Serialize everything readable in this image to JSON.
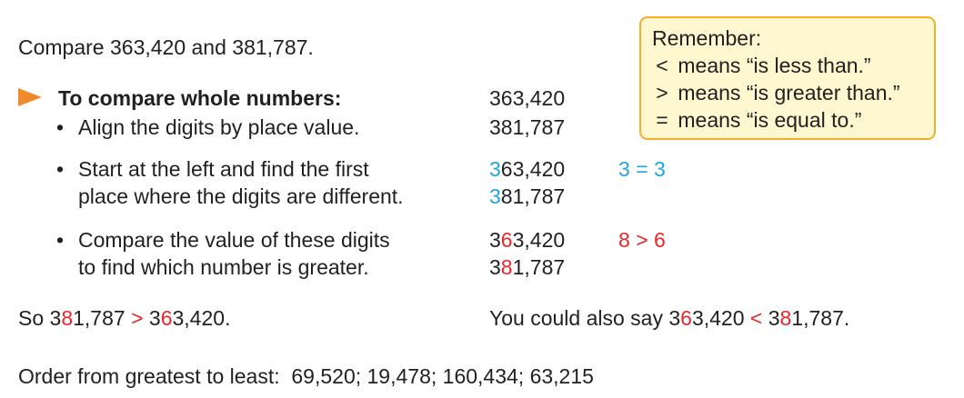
{
  "intro": "Compare 363,420 and 381,787.",
  "remember": {
    "title": "Remember:",
    "lines": [
      {
        "symbol": "<",
        "text": " means “is less than.”"
      },
      {
        "symbol": ">",
        "text": " means “is greater than.”"
      },
      {
        "symbol": "=",
        "text": " means “is equal to.”"
      }
    ]
  },
  "steps": {
    "heading": "To compare whole numbers:",
    "step1": {
      "text": "Align the digits by place value."
    },
    "step2": {
      "line1": "Start at the left and find the first",
      "line2": "place where the digits are different."
    },
    "step3": {
      "line1": "Compare the value of these digits",
      "line2": "to find which number is greater."
    }
  },
  "numbers": {
    "a": "363,420",
    "b": "381,787",
    "a_first": "3",
    "a_second": "6",
    "a_rest": "3,420",
    "b_first": "3",
    "b_second": "8",
    "b_rest": "1,787"
  },
  "comparisons": {
    "eq": {
      "left": "3",
      "op": "=",
      "right": "3"
    },
    "gt": {
      "left": "8",
      "op": ">",
      "right": "6"
    }
  },
  "conclusion": {
    "prefix": "So ",
    "op": ">",
    "period": ".",
    "alt_prefix": "You could also say ",
    "alt_op": "<"
  },
  "bullet_char": "•",
  "exercise": "Order from greatest to least:  69,520; 19,478; 160,434; 63,215",
  "colors": {
    "blue": "#1fa6dc",
    "red": "#e8262b",
    "arrow": "#ef8a2d",
    "box_fill": "#fff7d0",
    "box_border": "#f2b02a"
  }
}
